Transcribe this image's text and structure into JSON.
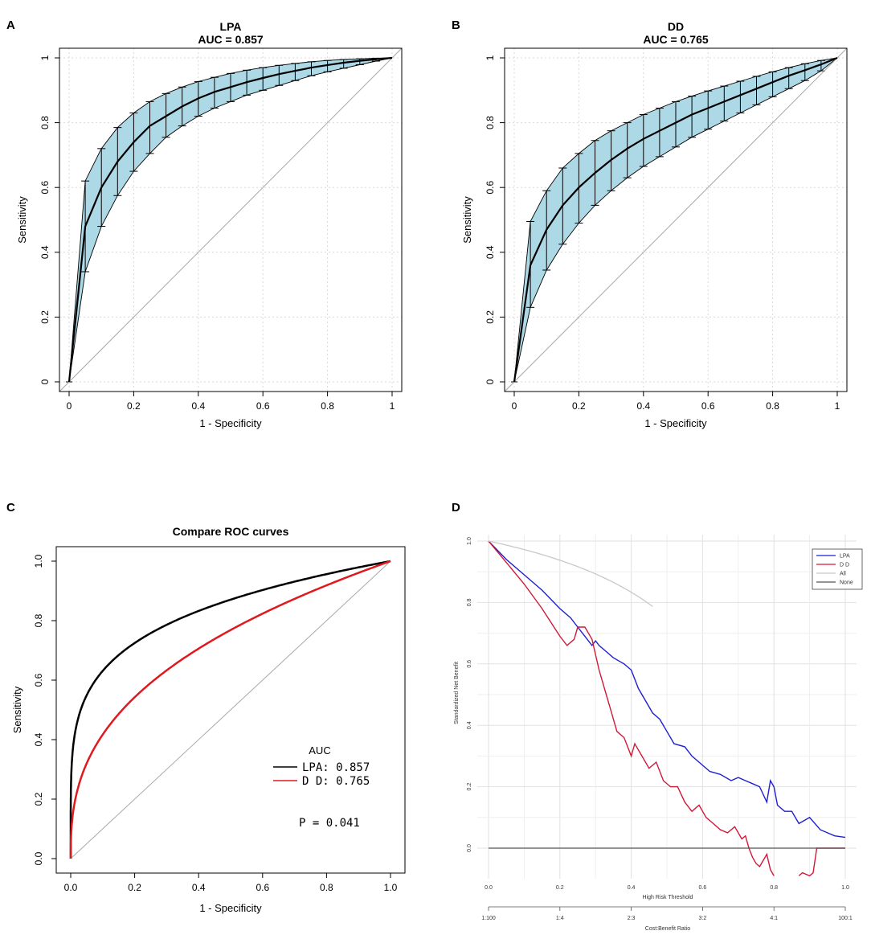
{
  "panels": [
    {
      "letter": "A"
    },
    {
      "letter": "B"
    },
    {
      "letter": "C"
    },
    {
      "letter": "D"
    }
  ],
  "chart_data": [
    {
      "type": "line",
      "panel": "A",
      "title": "LPA",
      "subtitle": "AUC = 0.857",
      "xlabel": "1 - Specificity",
      "ylabel": "Sensitivity",
      "xlim": [
        0,
        1
      ],
      "ylim": [
        0,
        1
      ],
      "xticks": [
        "0",
        "0.2",
        "0.4",
        "0.6",
        "0.8",
        "1"
      ],
      "yticks": [
        "0",
        "0.2",
        "0.4",
        "0.6",
        "0.8",
        "1"
      ],
      "grid": true,
      "ci_color": "#add8e6",
      "series": [
        {
          "name": "LPA",
          "x": [
            0,
            0.05,
            0.1,
            0.15,
            0.2,
            0.25,
            0.3,
            0.35,
            0.4,
            0.45,
            0.5,
            0.55,
            0.6,
            0.65,
            0.7,
            0.75,
            0.8,
            0.85,
            0.9,
            0.95,
            1
          ],
          "y": [
            0,
            0.48,
            0.6,
            0.68,
            0.74,
            0.79,
            0.82,
            0.85,
            0.875,
            0.895,
            0.91,
            0.925,
            0.938,
            0.95,
            0.96,
            0.97,
            0.978,
            0.985,
            0.991,
            0.996,
            1
          ],
          "lower": [
            0,
            0.34,
            0.48,
            0.575,
            0.65,
            0.705,
            0.755,
            0.79,
            0.82,
            0.845,
            0.865,
            0.885,
            0.9,
            0.915,
            0.93,
            0.945,
            0.957,
            0.968,
            0.979,
            0.99,
            1
          ],
          "upper": [
            0,
            0.62,
            0.72,
            0.785,
            0.83,
            0.865,
            0.89,
            0.91,
            0.927,
            0.94,
            0.952,
            0.962,
            0.97,
            0.977,
            0.983,
            0.988,
            0.992,
            0.995,
            0.997,
            0.999,
            1
          ]
        }
      ]
    },
    {
      "type": "line",
      "panel": "B",
      "title": "DD",
      "subtitle": "AUC = 0.765",
      "xlabel": "1 - Specificity",
      "ylabel": "Sensitivity",
      "xlim": [
        0,
        1
      ],
      "ylim": [
        0,
        1
      ],
      "xticks": [
        "0",
        "0.2",
        "0.4",
        "0.6",
        "0.8",
        "1"
      ],
      "yticks": [
        "0",
        "0.2",
        "0.4",
        "0.6",
        "0.8",
        "1"
      ],
      "grid": true,
      "ci_color": "#add8e6",
      "series": [
        {
          "name": "DD",
          "x": [
            0,
            0.05,
            0.1,
            0.15,
            0.2,
            0.25,
            0.3,
            0.35,
            0.4,
            0.45,
            0.5,
            0.55,
            0.6,
            0.65,
            0.7,
            0.75,
            0.8,
            0.85,
            0.9,
            0.95,
            1
          ],
          "y": [
            0,
            0.36,
            0.47,
            0.545,
            0.6,
            0.645,
            0.685,
            0.72,
            0.75,
            0.775,
            0.8,
            0.825,
            0.845,
            0.865,
            0.885,
            0.905,
            0.925,
            0.945,
            0.962,
            0.98,
            1
          ],
          "lower": [
            0,
            0.23,
            0.345,
            0.425,
            0.49,
            0.545,
            0.59,
            0.63,
            0.665,
            0.695,
            0.725,
            0.755,
            0.78,
            0.805,
            0.83,
            0.855,
            0.88,
            0.905,
            0.93,
            0.96,
            1
          ],
          "upper": [
            0,
            0.495,
            0.59,
            0.66,
            0.705,
            0.745,
            0.775,
            0.8,
            0.825,
            0.845,
            0.865,
            0.882,
            0.898,
            0.913,
            0.928,
            0.943,
            0.957,
            0.97,
            0.982,
            0.992,
            1
          ]
        }
      ]
    },
    {
      "type": "line",
      "panel": "C",
      "title": "Compare ROC curves",
      "xlabel": "1 - Specificity",
      "ylabel": "Sensitivity",
      "xlim": [
        0,
        1
      ],
      "ylim": [
        0,
        1
      ],
      "xticks": [
        "0.0",
        "0.2",
        "0.4",
        "0.6",
        "0.8",
        "1.0"
      ],
      "yticks": [
        "0.0",
        "0.2",
        "0.4",
        "0.6",
        "0.8",
        "1.0"
      ],
      "grid": false,
      "legend_title": "AUC",
      "legend_position": "bottom-right",
      "annotation": "P = 0.041",
      "series": [
        {
          "name": "LPA",
          "label": "LPA: 0.857",
          "color": "#000000",
          "exponent": 0.2
        },
        {
          "name": "D D",
          "label": "D D: 0.765",
          "color": "#e0191f",
          "exponent": 0.38
        }
      ]
    },
    {
      "type": "line",
      "panel": "D",
      "xlabel": "High Risk Threshold",
      "x2label": "Cost:Benefit Ratio",
      "ylabel": "Standardized Net Benefit",
      "xlim": [
        0,
        1
      ],
      "ylim": [
        -0.09,
        1
      ],
      "xticks": [
        "0.0",
        "0.2",
        "0.4",
        "0.6",
        "0.8",
        "1.0"
      ],
      "yticks": [
        "0.0",
        "0.2",
        "0.4",
        "0.6",
        "0.8",
        "1.0"
      ],
      "x2ticks": [
        "1:100",
        "1:4",
        "2:3",
        "3:2",
        "4:1",
        "100:1"
      ],
      "grid": true,
      "legend_position": "top-right",
      "series": [
        {
          "name": "LPA",
          "color": "#1f1fd1",
          "x": [
            0,
            0.05,
            0.1,
            0.15,
            0.2,
            0.23,
            0.25,
            0.27,
            0.29,
            0.3,
            0.31,
            0.33,
            0.35,
            0.38,
            0.4,
            0.42,
            0.44,
            0.46,
            0.48,
            0.5,
            0.52,
            0.55,
            0.57,
            0.6,
            0.62,
            0.65,
            0.68,
            0.7,
            0.72,
            0.74,
            0.76,
            0.78,
            0.79,
            0.8,
            0.81,
            0.83,
            0.85,
            0.87,
            0.9,
            0.93,
            0.95,
            0.97,
            1
          ],
          "y": [
            1,
            0.94,
            0.89,
            0.84,
            0.78,
            0.75,
            0.72,
            0.69,
            0.66,
            0.675,
            0.66,
            0.64,
            0.62,
            0.6,
            0.58,
            0.52,
            0.48,
            0.44,
            0.42,
            0.38,
            0.34,
            0.33,
            0.3,
            0.27,
            0.25,
            0.24,
            0.22,
            0.23,
            0.22,
            0.21,
            0.2,
            0.15,
            0.22,
            0.2,
            0.14,
            0.12,
            0.12,
            0.08,
            0.1,
            0.06,
            0.05,
            0.04,
            0.035
          ]
        },
        {
          "name": "D D",
          "color": "#d1193a",
          "x": [
            0,
            0.05,
            0.1,
            0.15,
            0.2,
            0.22,
            0.24,
            0.25,
            0.27,
            0.29,
            0.31,
            0.33,
            0.34,
            0.36,
            0.38,
            0.4,
            0.41,
            0.43,
            0.45,
            0.47,
            0.49,
            0.51,
            0.53,
            0.55,
            0.57,
            0.59,
            0.61,
            0.63,
            0.65,
            0.67,
            0.69,
            0.71,
            0.72,
            0.73,
            0.74,
            0.75,
            0.76,
            0.78,
            0.79,
            0.8
          ],
          "y": [
            1,
            0.93,
            0.86,
            0.78,
            0.69,
            0.66,
            0.68,
            0.72,
            0.72,
            0.68,
            0.58,
            0.5,
            0.46,
            0.38,
            0.36,
            0.3,
            0.34,
            0.3,
            0.26,
            0.28,
            0.22,
            0.2,
            0.2,
            0.15,
            0.12,
            0.14,
            0.1,
            0.08,
            0.06,
            0.05,
            0.07,
            0.03,
            0.04,
            0,
            -0.03,
            -0.05,
            -0.06,
            -0.02,
            -0.07,
            -0.09
          ]
        },
        {
          "name": "D D (right segment)",
          "color": "#d1193a",
          "x": [
            0.87,
            0.88,
            0.9,
            0.91,
            0.92,
            1
          ],
          "y": [
            -0.09,
            -0.08,
            -0.09,
            -0.08,
            0,
            0
          ]
        },
        {
          "name": "All",
          "color": "#c8c8c8",
          "prevalence": 0.8
        },
        {
          "name": "None",
          "color": "#555555",
          "constant": 0
        }
      ]
    }
  ]
}
